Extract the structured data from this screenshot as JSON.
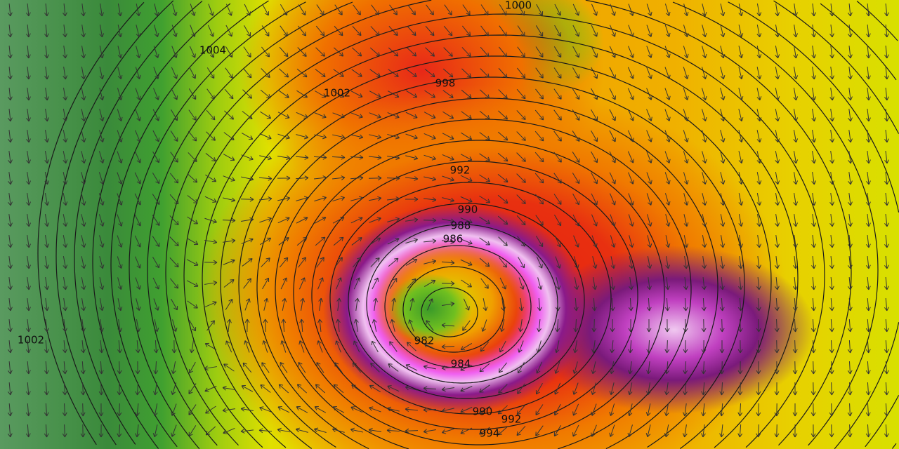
{
  "map": {
    "type": "weather model wind-gust and sea-level-pressure map",
    "colors": {
      "low_wind": "#3a8a3a",
      "moderate": "#e0e000",
      "strong": "#f07a00",
      "very_strong": "#e82010",
      "extreme": "#8a1a8a",
      "max": "#f060f0"
    },
    "icons": [
      "wind-arrow-icon"
    ],
    "isobars": {
      "labels": [
        "1000",
        "1004",
        "1002",
        "998",
        "992",
        "990",
        "988",
        "986",
        "982",
        "984",
        "990",
        "992",
        "994",
        "1002"
      ]
    }
  }
}
